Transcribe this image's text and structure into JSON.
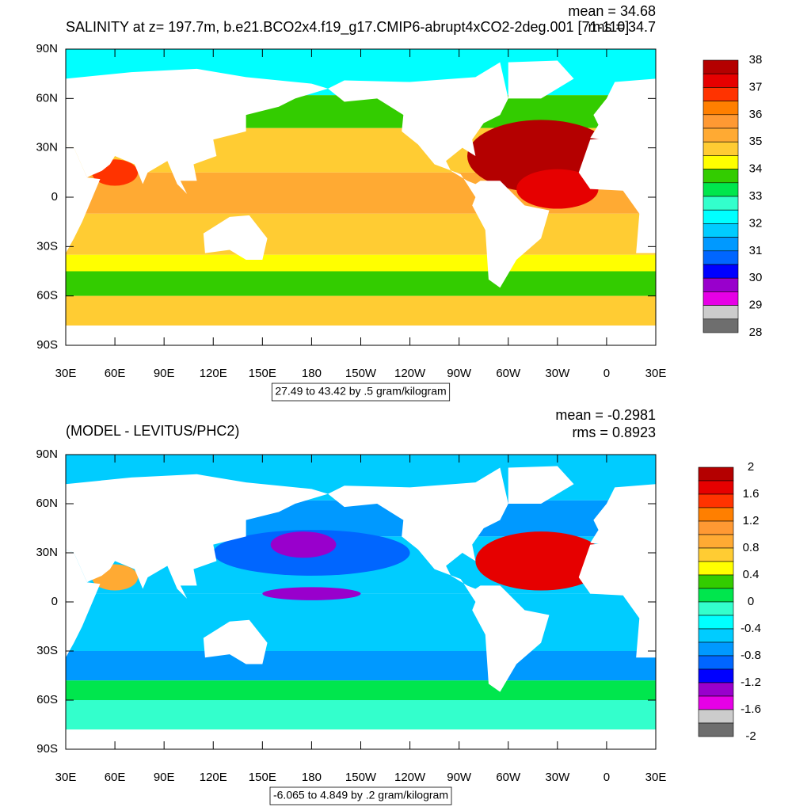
{
  "colors": [
    "#b40000",
    "#e60000",
    "#ff3300",
    "#ff7f00",
    "#ff9933",
    "#ffaa33",
    "#ffcc33",
    "#ffff00",
    "#33cc00",
    "#00e64d",
    "#33ffcc",
    "#00ffff",
    "#00ccff",
    "#0099ff",
    "#0066ff",
    "#0000ff",
    "#9900cc",
    "#e600e6",
    "#cccccc",
    "#6e6e6e"
  ],
  "panels": [
    {
      "title": "SALINITY at z= 197.7m, b.e21.BCO2x4.f19_g17.CMIP6-abrupt4xCO2-2deg.001 [71-110]",
      "mean": "mean = 34.68",
      "rms": "rms = 34.7",
      "range_label": "27.49 to 43.42 by .5 gram/kilogram",
      "lat_labels": [
        "90N",
        "60N",
        "30N",
        "0",
        "30S",
        "60S",
        "90S"
      ],
      "lon_labels": [
        "30E",
        "60E",
        "90E",
        "120E",
        "150E",
        "180",
        "150W",
        "120W",
        "90W",
        "60W",
        "30W",
        "0",
        "30E"
      ],
      "colorbar_labels": [
        "38",
        "37",
        "36",
        "35",
        "34",
        "33",
        "32",
        "31",
        "30",
        "29",
        "28"
      ]
    },
    {
      "title": "(MODEL - LEVITUS/PHC2)",
      "mean": "mean = -0.2981",
      "rms": "rms = 0.8923",
      "range_label": "-6.065 to 4.849 by .2 gram/kilogram",
      "lat_labels": [
        "90N",
        "60N",
        "30N",
        "0",
        "30S",
        "60S",
        "90S"
      ],
      "lon_labels": [
        "30E",
        "60E",
        "90E",
        "120E",
        "150E",
        "180",
        "150W",
        "120W",
        "90W",
        "60W",
        "30W",
        "0",
        "30E"
      ],
      "colorbar_labels": [
        "2",
        "1.6",
        "1.2",
        "0.8",
        "0.4",
        "0",
        "-0.4",
        "-0.8",
        "-1.2",
        "-1.6",
        "-2"
      ]
    }
  ]
}
